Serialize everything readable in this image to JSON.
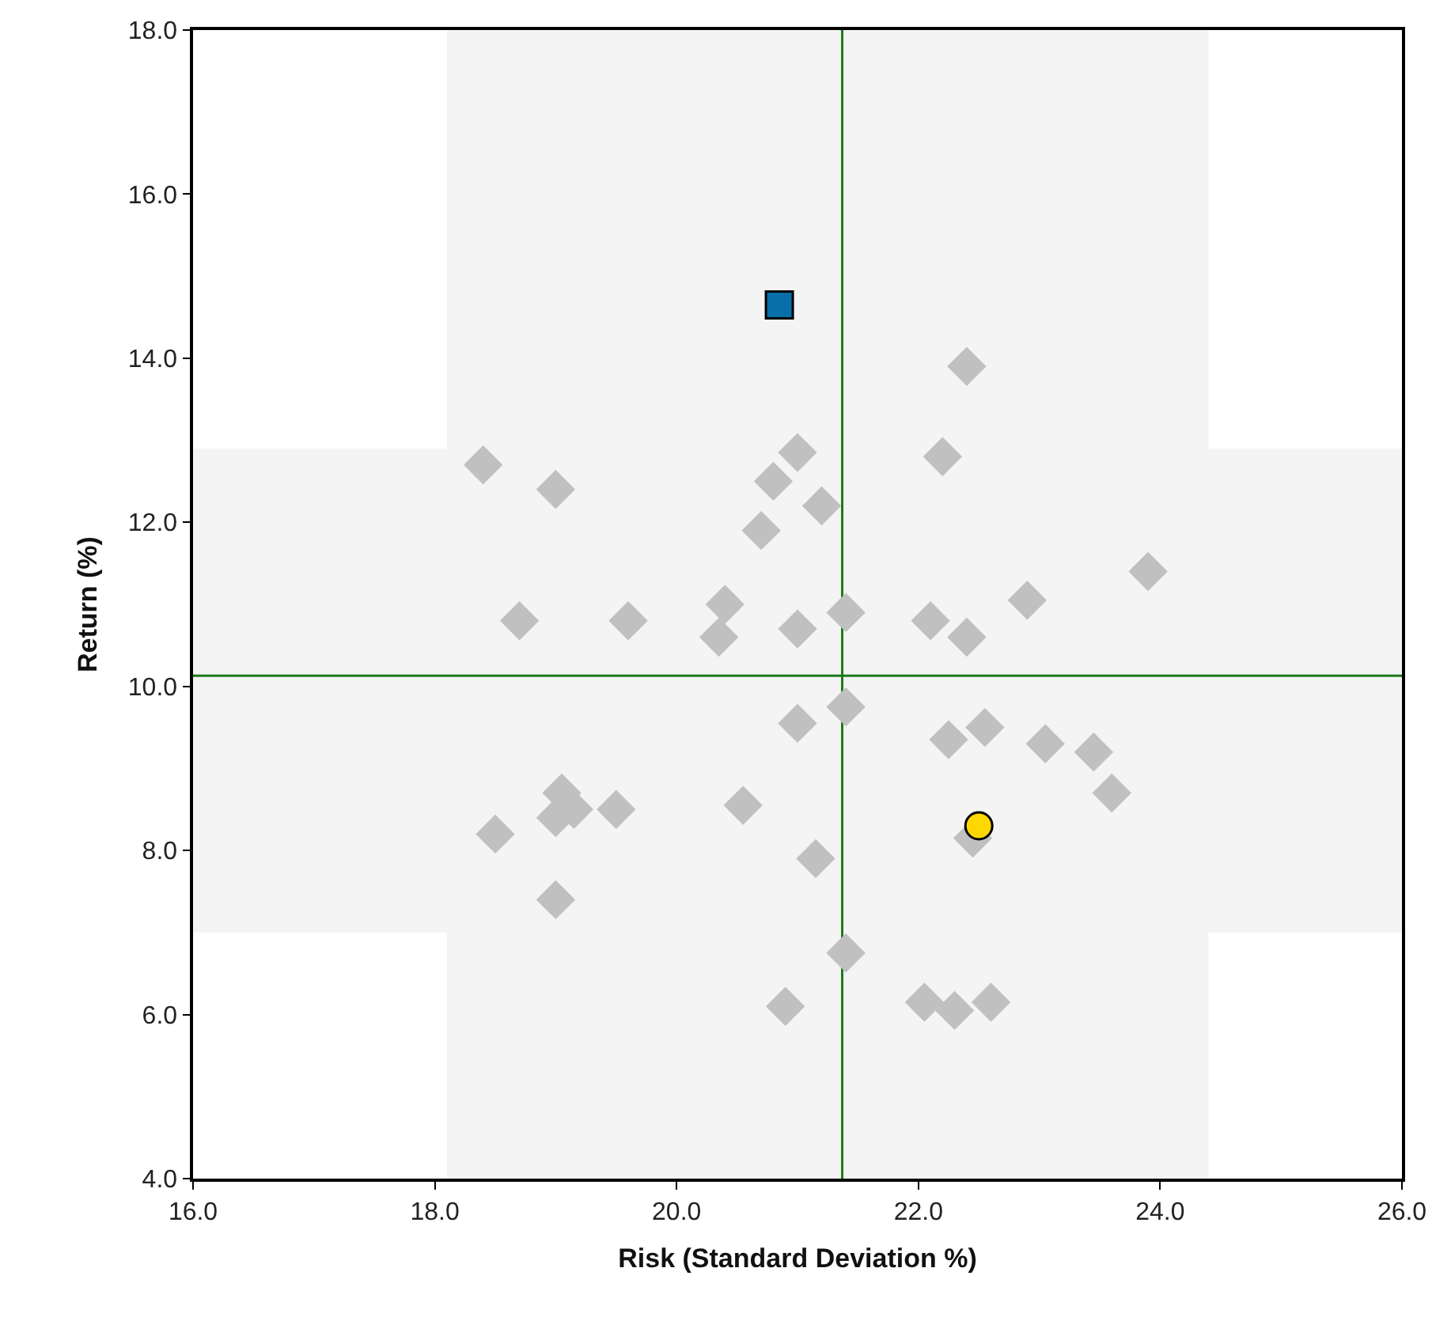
{
  "chart_data": {
    "type": "scatter",
    "xlabel": "Risk (Standard Deviation %)",
    "ylabel": "Return (%)",
    "xlim": [
      16,
      26
    ],
    "ylim": [
      4,
      18
    ],
    "xticks": [
      {
        "value": 16,
        "label": "16.0"
      },
      {
        "value": 18,
        "label": "18.0"
      },
      {
        "value": 20,
        "label": "20.0"
      },
      {
        "value": 22,
        "label": "22.0"
      },
      {
        "value": 24,
        "label": "24.0"
      },
      {
        "value": 26,
        "label": "26.0"
      }
    ],
    "yticks": [
      {
        "value": 4,
        "label": "4.0"
      },
      {
        "value": 6,
        "label": "6.0"
      },
      {
        "value": 8,
        "label": "8.0"
      },
      {
        "value": 10,
        "label": "10.0"
      },
      {
        "value": 12,
        "label": "12.0"
      },
      {
        "value": 14,
        "label": "14.0"
      },
      {
        "value": 16,
        "label": "16.0"
      },
      {
        "value": 18,
        "label": "18.0"
      }
    ],
    "bands": [
      {
        "axis": "x",
        "from": 18.1,
        "to": 24.4,
        "color": "#f4f4f4"
      },
      {
        "axis": "y",
        "from": 7.0,
        "to": 12.9,
        "color": "#f4f4f4"
      }
    ],
    "ref_lines": [
      {
        "axis": "x",
        "value": 21.37,
        "color": "#1a7a1a"
      },
      {
        "axis": "y",
        "value": 10.13,
        "color": "#1a7a1a"
      }
    ],
    "series": [
      {
        "color": "#c0c0c0",
        "marker": "diamond",
        "x": [
          18.4,
          19.0,
          18.7,
          19.6,
          20.4,
          20.35,
          20.7,
          20.8,
          21.0,
          21.2,
          21.0,
          21.4,
          22.4,
          22.2,
          22.1,
          22.4,
          22.9,
          23.9,
          21.4,
          21.0,
          22.25,
          22.55,
          23.05,
          23.45,
          23.6,
          18.5,
          19.05,
          19.0,
          19.15,
          19.5,
          20.55,
          19.0,
          21.15,
          22.45,
          21.4,
          20.9,
          22.05,
          22.3,
          22.6
        ],
        "values": [
          12.7,
          12.4,
          10.8,
          10.8,
          11.0,
          10.6,
          11.9,
          12.5,
          12.85,
          12.2,
          10.7,
          10.9,
          13.9,
          12.8,
          10.8,
          10.6,
          11.05,
          11.4,
          9.75,
          9.55,
          9.35,
          9.5,
          9.3,
          9.2,
          8.7,
          8.2,
          8.7,
          8.4,
          8.5,
          8.5,
          8.55,
          7.4,
          7.9,
          8.15,
          6.75,
          6.1,
          6.15,
          6.05,
          6.15
        ]
      },
      {
        "color": "#0a6ea8",
        "marker": "square",
        "x": [
          20.85
        ],
        "values": [
          14.65
        ]
      },
      {
        "color": "#ffd700",
        "marker": "circle",
        "x": [
          22.5
        ],
        "values": [
          8.3
        ]
      }
    ]
  }
}
